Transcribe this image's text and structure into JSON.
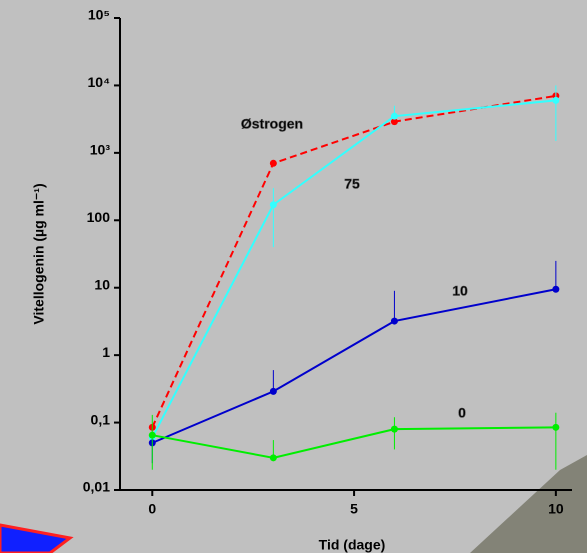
{
  "chart_data": {
    "type": "line",
    "xlabel": "Tid (dage)",
    "ylabel": "Vitellogenin (µg ml⁻¹)",
    "log_y": true,
    "xlim": [
      -0.8,
      10.4
    ],
    "xticks": [
      0,
      5,
      10
    ],
    "ylim": [
      0.01,
      100000
    ],
    "yticks": [
      {
        "value": 0.01,
        "label": "0,01"
      },
      {
        "value": 0.1,
        "label": "0,1"
      },
      1,
      10,
      100,
      {
        "value": 1000,
        "label": "10³"
      },
      {
        "value": 10000,
        "label": "10⁴"
      },
      {
        "value": 100000,
        "label": "10⁵"
      }
    ],
    "x": [
      0,
      3,
      6,
      10
    ],
    "series": [
      {
        "name": "Østrogen",
        "color": "#ff0000",
        "dash": true,
        "values": [
          0.085,
          700,
          2900,
          7000
        ],
        "err_high": [
          null,
          null,
          null,
          null
        ],
        "err_low": [
          null,
          null,
          null,
          null
        ]
      },
      {
        "name": "75",
        "color": "#33ffff",
        "dash": false,
        "values": [
          0.06,
          170,
          3500,
          6000
        ],
        "err_high": [
          null,
          300,
          5000,
          10000
        ],
        "err_low": [
          null,
          40,
          null,
          1500
        ]
      },
      {
        "name": "10",
        "color": "#0000cc",
        "dash": false,
        "values": [
          0.05,
          0.29,
          3.2,
          9.5
        ],
        "err_high": [
          null,
          0.6,
          9,
          25
        ],
        "err_low": [
          0.025,
          null,
          null,
          null
        ]
      },
      {
        "name": "0",
        "color": "#00ee00",
        "dash": false,
        "values": [
          0.065,
          0.03,
          0.08,
          0.085
        ],
        "err_high": [
          0.13,
          0.055,
          0.12,
          0.14
        ],
        "err_low": [
          0.02,
          null,
          0.04,
          0.02
        ]
      }
    ]
  }
}
